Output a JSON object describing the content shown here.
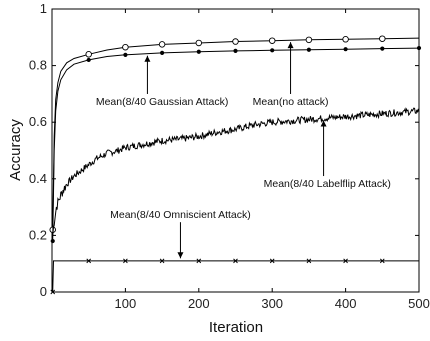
{
  "chart_data": {
    "type": "line",
    "xlabel": "Iteration",
    "ylabel": "Accuracy",
    "xlim": [
      0,
      500
    ],
    "ylim": [
      0,
      1
    ],
    "xticks": [
      100,
      200,
      300,
      400,
      500
    ],
    "yticks": [
      0,
      0.2,
      0.4,
      0.6,
      0.8,
      1
    ],
    "ytick_labels": [
      "0",
      "0.2",
      "0.4",
      "0.6",
      "0.8",
      "1"
    ],
    "grid": false,
    "series": [
      {
        "name": "Mean(no attack)",
        "marker": "circle",
        "x": [
          1,
          3,
          5,
          8,
          12,
          20,
          30,
          50,
          75,
          100,
          150,
          200,
          250,
          300,
          350,
          400,
          450,
          500
        ],
        "y": [
          0.22,
          0.55,
          0.68,
          0.74,
          0.78,
          0.81,
          0.825,
          0.84,
          0.855,
          0.865,
          0.875,
          0.88,
          0.885,
          0.888,
          0.891,
          0.893,
          0.895,
          0.897
        ],
        "marker_x": [
          1,
          50,
          100,
          150,
          200,
          250,
          300,
          350,
          400,
          450
        ]
      },
      {
        "name": "Mean(8/40 Gaussian Attack)",
        "marker": "dot",
        "x": [
          1,
          3,
          5,
          8,
          12,
          20,
          30,
          50,
          75,
          100,
          150,
          200,
          250,
          300,
          350,
          400,
          450,
          500
        ],
        "y": [
          0.18,
          0.5,
          0.64,
          0.71,
          0.75,
          0.785,
          0.805,
          0.82,
          0.832,
          0.838,
          0.845,
          0.849,
          0.852,
          0.854,
          0.856,
          0.858,
          0.86,
          0.862
        ],
        "marker_x": [
          1,
          50,
          100,
          150,
          200,
          250,
          300,
          350,
          400,
          450,
          500
        ]
      },
      {
        "name": "Mean(8/40 Labelflip Attack)",
        "marker": "none",
        "x": [
          1,
          3,
          6,
          10,
          15,
          20,
          30,
          40,
          50,
          60,
          75,
          90,
          100,
          120,
          150,
          175,
          200,
          225,
          250,
          275,
          300,
          325,
          350,
          375,
          400,
          425,
          450,
          475,
          500
        ],
        "y": [
          0.2,
          0.25,
          0.3,
          0.33,
          0.36,
          0.38,
          0.41,
          0.43,
          0.45,
          0.47,
          0.49,
          0.5,
          0.51,
          0.52,
          0.535,
          0.54,
          0.55,
          0.565,
          0.575,
          0.59,
          0.6,
          0.605,
          0.61,
          0.615,
          0.62,
          0.625,
          0.63,
          0.635,
          0.64
        ],
        "noise": 0.012
      },
      {
        "name": "Mean(8/40 Omniscient Attack)",
        "marker": "x",
        "x": [
          1,
          2,
          500
        ],
        "y": [
          0.0,
          0.11,
          0.11
        ],
        "marker_x": [
          1,
          50,
          100,
          150,
          200,
          250,
          300,
          350,
          400,
          450
        ]
      }
    ],
    "annotations": [
      {
        "text": "Mean(8/40 Gaussian Attack)",
        "target": [
          130,
          0.842
        ],
        "label_at": [
          150,
          0.675
        ]
      },
      {
        "text": "Mean(no attack)",
        "target": [
          325,
          0.89
        ],
        "label_at": [
          325,
          0.675
        ]
      },
      {
        "text": "Mean(8/40 Labelflip Attack)",
        "target": [
          370,
          0.613
        ],
        "label_at": [
          375,
          0.385
        ]
      },
      {
        "text": "Mean(8/40 Omniscient Attack)",
        "target": [
          175,
          0.112
        ],
        "label_at": [
          175,
          0.275
        ]
      }
    ]
  }
}
